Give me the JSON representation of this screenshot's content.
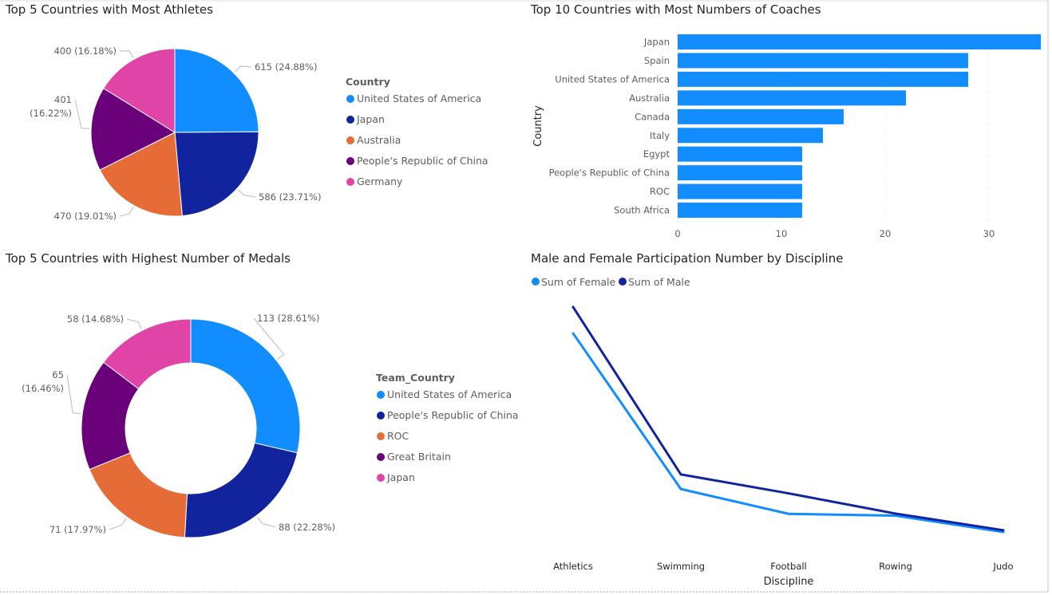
{
  "colors": {
    "c1": "#118DFF",
    "c2": "#12239E",
    "c3": "#E66C37",
    "c4": "#6B007B",
    "c5": "#E044A7"
  },
  "chart_data": [
    {
      "type": "pie",
      "title": "Top 5 Countries with Most Athletes",
      "legend_title": "Country",
      "legend_position": "right",
      "categories": [
        "United States of America",
        "Japan",
        "Australia",
        "People's Republic of China",
        "Germany"
      ],
      "values": [
        615,
        586,
        470,
        401,
        400
      ],
      "data_labels": [
        "615 (24.88%)",
        "586 (23.71%)",
        "470 (19.01%)",
        "401 (16.22%)",
        "400 (16.18%)"
      ]
    },
    {
      "type": "bar",
      "orientation": "horizontal",
      "title": "Top 10 Countries with Most Numbers of Coaches",
      "ylabel": "Country",
      "xlabel": "",
      "categories": [
        "Japan",
        "Spain",
        "United States of America",
        "Australia",
        "Canada",
        "Italy",
        "Egypt",
        "People's Republic of China",
        "ROC",
        "South Africa"
      ],
      "values": [
        35,
        28,
        28,
        22,
        16,
        14,
        12,
        12,
        12,
        12
      ],
      "xlim": [
        0,
        35
      ],
      "xticks": [
        "0",
        "10",
        "20",
        "30"
      ],
      "grid": true
    },
    {
      "type": "pie",
      "subtype": "donut",
      "title": "Top 5 Countries with Highest Number of Medals",
      "legend_title": "Team_Country",
      "legend_position": "right",
      "categories": [
        "United States of America",
        "People's Republic of China",
        "ROC",
        "Great Britain",
        "Japan"
      ],
      "values": [
        113,
        88,
        71,
        65,
        58
      ],
      "data_labels": [
        "113 (28.61%)",
        "88 (22.28%)",
        "71 (17.97%)",
        "65 (16.46%)",
        "58 (14.68%)"
      ]
    },
    {
      "type": "line",
      "title": "Male and Female Participation Number by Discipline",
      "xlabel": "Discipline",
      "ylabel": "",
      "legend_position": "top-left",
      "categories": [
        "Athletics",
        "Swimming",
        "Football",
        "Rowing",
        "Judo"
      ],
      "series": [
        {
          "name": "Sum of Female",
          "values": [
            969,
            361,
            264,
            257,
            193
          ]
        },
        {
          "name": "Sum of Male",
          "values": [
            1072,
            418,
            344,
            265,
            200
          ]
        }
      ],
      "y_axis_visible": false,
      "grid": false
    }
  ]
}
